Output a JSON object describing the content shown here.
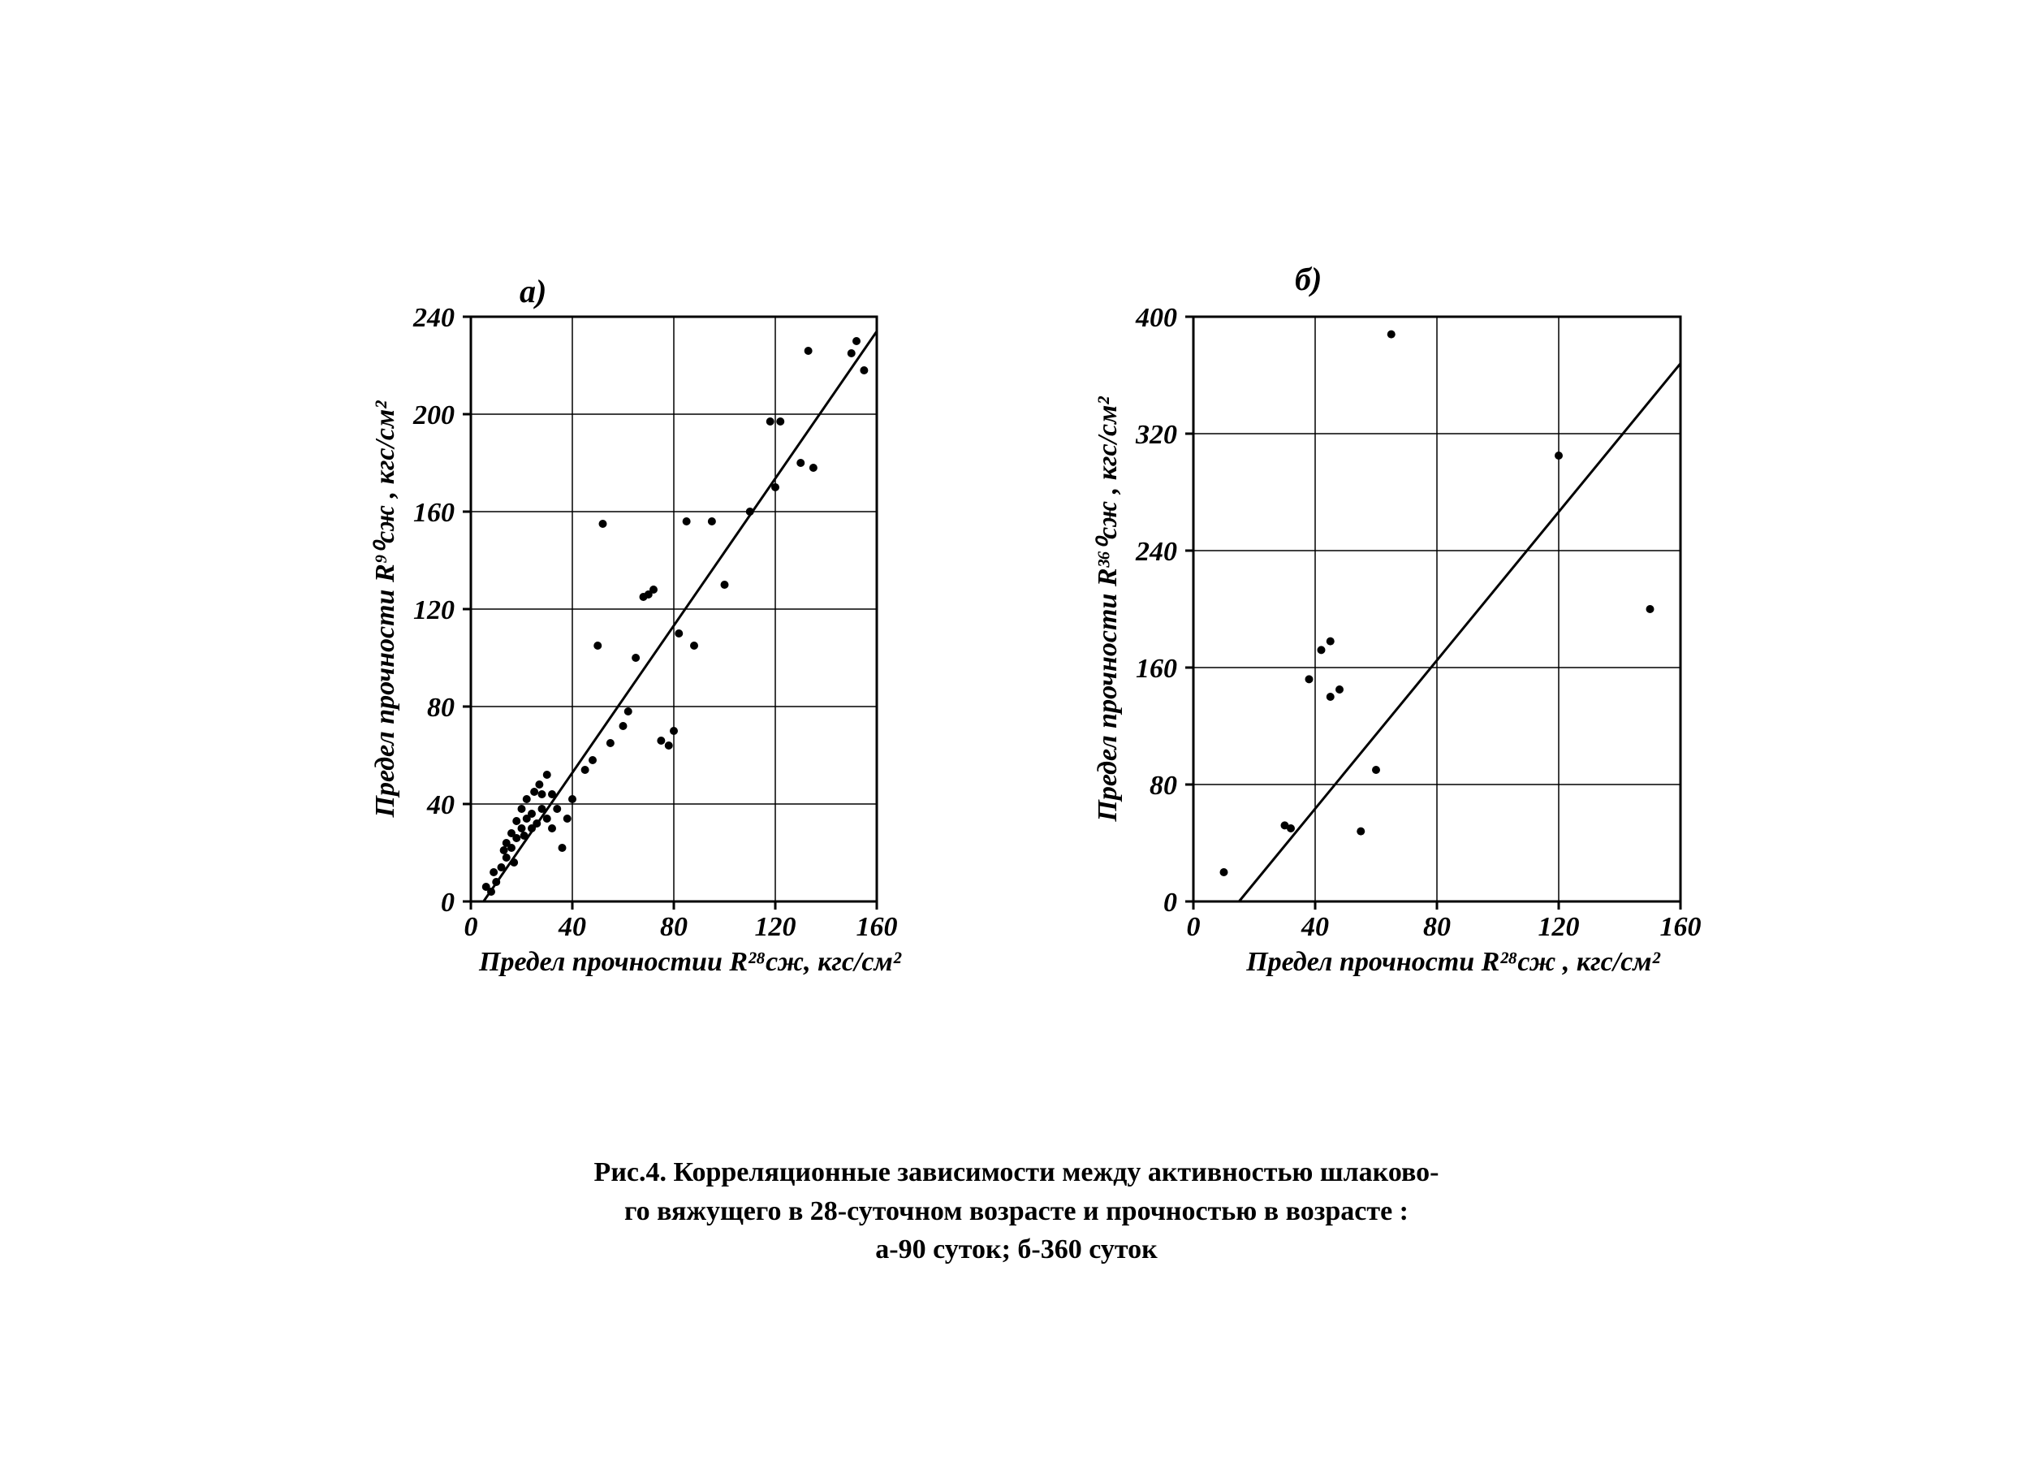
{
  "figure": {
    "background_color": "#ffffff",
    "ink_color": "#000000",
    "caption_lines": [
      "Рис.4. Корреляционные зависимости между активностью шлаково-",
      "го вяжущего в 28-суточном возрасте и прочностью в возрасте :",
      "а-90 суток; б-360 суток"
    ],
    "caption_fontsize": 34
  },
  "panels": {
    "a": {
      "type": "scatter",
      "subplot_label": "а)",
      "xlabel": "Предел прочностии   R²⁸сж, кгс/см²",
      "ylabel": "Предел прочности  R⁹⁰сж , кгс/см²",
      "xlim": [
        0,
        160
      ],
      "ylim": [
        0,
        240
      ],
      "xticks": [
        0,
        40,
        80,
        120,
        160
      ],
      "yticks": [
        0,
        40,
        80,
        120,
        160,
        200,
        240
      ],
      "xtick_labels": [
        "0",
        "40",
        "80",
        "120",
        "160"
      ],
      "ytick_labels": [
        "0",
        "40",
        "80",
        "120",
        "160",
        "200",
        "240"
      ],
      "grid_color": "#000000",
      "grid_linewidth": 1.5,
      "frame_linewidth": 3,
      "marker_color": "#000000",
      "marker_radius": 5,
      "line_color": "#000000",
      "line_width": 3,
      "trend_line": {
        "x1": 5,
        "y1": 0,
        "x2": 160,
        "y2": 234
      },
      "points": [
        [
          6,
          6
        ],
        [
          8,
          4
        ],
        [
          9,
          12
        ],
        [
          10,
          8
        ],
        [
          12,
          14
        ],
        [
          13,
          21
        ],
        [
          14,
          18
        ],
        [
          14,
          24
        ],
        [
          16,
          22
        ],
        [
          16,
          28
        ],
        [
          17,
          16
        ],
        [
          18,
          33
        ],
        [
          18,
          26
        ],
        [
          20,
          30
        ],
        [
          20,
          38
        ],
        [
          21,
          27
        ],
        [
          22,
          34
        ],
        [
          22,
          42
        ],
        [
          24,
          30
        ],
        [
          24,
          36
        ],
        [
          25,
          45
        ],
        [
          26,
          32
        ],
        [
          27,
          48
        ],
        [
          28,
          38
        ],
        [
          28,
          44
        ],
        [
          30,
          34
        ],
        [
          30,
          52
        ],
        [
          32,
          30
        ],
        [
          32,
          44
        ],
        [
          34,
          38
        ],
        [
          36,
          22
        ],
        [
          38,
          34
        ],
        [
          40,
          42
        ],
        [
          45,
          54
        ],
        [
          48,
          58
        ],
        [
          50,
          105
        ],
        [
          52,
          155
        ],
        [
          55,
          65
        ],
        [
          60,
          72
        ],
        [
          62,
          78
        ],
        [
          65,
          100
        ],
        [
          68,
          125
        ],
        [
          70,
          126
        ],
        [
          72,
          128
        ],
        [
          75,
          66
        ],
        [
          78,
          64
        ],
        [
          80,
          70
        ],
        [
          82,
          110
        ],
        [
          85,
          156
        ],
        [
          88,
          105
        ],
        [
          95,
          156
        ],
        [
          100,
          130
        ],
        [
          110,
          160
        ],
        [
          118,
          197
        ],
        [
          120,
          170
        ],
        [
          122,
          197
        ],
        [
          130,
          180
        ],
        [
          135,
          178
        ],
        [
          133,
          226
        ],
        [
          150,
          225
        ],
        [
          152,
          230
        ],
        [
          155,
          218
        ]
      ]
    },
    "b": {
      "type": "scatter",
      "subplot_label": "б)",
      "xlabel": "Предел прочности  R²⁸сж , кгс/см²",
      "ylabel": "Предел прочности  R³⁶⁰сж , кгс/см²",
      "xlim": [
        0,
        160
      ],
      "ylim": [
        0,
        400
      ],
      "xticks": [
        0,
        40,
        80,
        120,
        160
      ],
      "yticks": [
        0,
        80,
        160,
        240,
        320,
        400
      ],
      "xtick_labels": [
        "0",
        "40",
        "80",
        "120",
        "160"
      ],
      "ytick_labels": [
        "0",
        "80",
        "160",
        "240",
        "320",
        "400"
      ],
      "grid_color": "#000000",
      "grid_linewidth": 1.5,
      "frame_linewidth": 3,
      "marker_color": "#000000",
      "marker_radius": 5,
      "line_color": "#000000",
      "line_width": 3,
      "trend_line": {
        "x1": 15,
        "y1": 0,
        "x2": 160,
        "y2": 368
      },
      "points": [
        [
          10,
          20
        ],
        [
          30,
          52
        ],
        [
          32,
          50
        ],
        [
          38,
          152
        ],
        [
          42,
          172
        ],
        [
          45,
          178
        ],
        [
          45,
          140
        ],
        [
          48,
          145
        ],
        [
          55,
          48
        ],
        [
          60,
          90
        ],
        [
          65,
          388
        ],
        [
          120,
          305
        ],
        [
          150,
          200
        ]
      ]
    }
  }
}
